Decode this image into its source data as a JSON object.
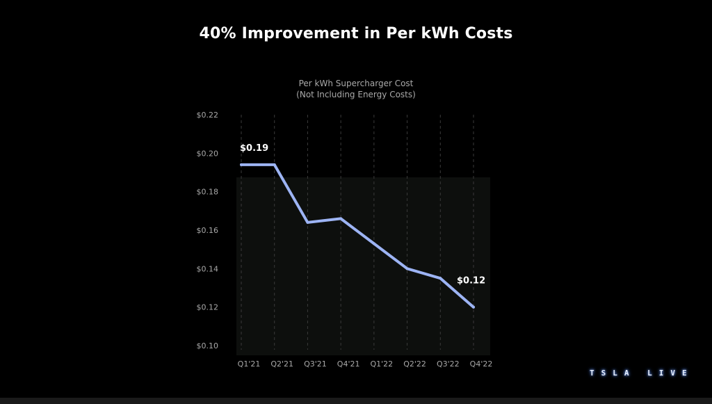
{
  "slide": {
    "title": "40% Improvement in Per kWh Costs",
    "logo_text": "TSLA LIVE"
  },
  "colors": {
    "background": "#000000",
    "plot_background": "#0d0f0d",
    "line": "#9db4f4",
    "text": "#ffffff",
    "muted_text": "#a9a9a9",
    "grid": "#3a3a3a"
  },
  "chart_data": {
    "type": "line",
    "title": "Per kWh Supercharger Cost",
    "subtitle": "(Not Including Energy Costs)",
    "xlabel": "",
    "ylabel": "",
    "categories": [
      "Q1'21",
      "Q2'21",
      "Q3'21",
      "Q4'21",
      "Q1'22",
      "Q2'22",
      "Q3'22",
      "Q4'22"
    ],
    "series": [
      {
        "values": [
          0.194,
          0.194,
          0.164,
          0.166,
          0.153,
          0.14,
          0.135,
          0.12
        ]
      }
    ],
    "ylim": [
      0.1,
      0.22
    ],
    "yticks": [
      0.1,
      0.12,
      0.14,
      0.16,
      0.18,
      0.2,
      0.22
    ],
    "ytick_labels": [
      "$0.10",
      "$0.12",
      "$0.14",
      "$0.16",
      "$0.18",
      "$0.20",
      "$0.22"
    ],
    "grid": "vertical dashed",
    "legend": "none",
    "annotations": [
      {
        "category": "Q1'21",
        "text": "$0.19"
      },
      {
        "category": "Q4'22",
        "text": "$0.12"
      }
    ]
  }
}
